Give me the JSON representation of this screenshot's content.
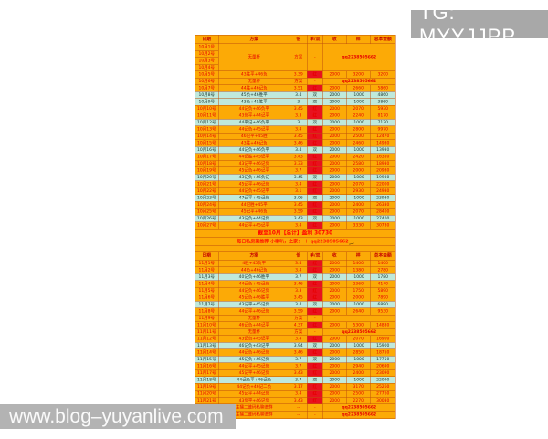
{
  "tg": {
    "label": "TG: MYYJJPP"
  },
  "watermark": {
    "text": "www.blog–yuyanlive.com"
  },
  "colors": {
    "row_win": "#fcaa06",
    "row_loss": "#bfe9dc",
    "grid": "#c1500a",
    "red_text": "#e60000",
    "badge_bg": "#e8111e",
    "badge_text": "#ffd94a",
    "tg_bg": "#a8a8a8",
    "watermark_bg": "#b3b3b3"
  },
  "table": {
    "headers": [
      "日期",
      "方案",
      "倍",
      "单/双",
      "收",
      "样",
      "总本金额"
    ],
    "rows": [
      {
        "type": "header"
      },
      {
        "type": "group4",
        "dates": [
          "10月1号",
          "10月2号",
          "10月3号",
          "10月4号"
        ],
        "plan": "无量杯",
        "odds": "方案",
        "sign": "-",
        "note": "qq2238505662"
      },
      {
        "type": "data",
        "style": "win",
        "date": "10月5号",
        "plan": "43胜平+46负",
        "odds": "3.39",
        "sign": "红",
        "stake": "2000",
        "result": "3200",
        "total": "3200"
      },
      {
        "type": "rest",
        "date": "10月6号",
        "plan": "无量杯",
        "odds": "方案",
        "sign": "-",
        "note": "qq2238505662"
      },
      {
        "type": "data",
        "style": "win",
        "date": "10月7号",
        "plan": "44胜+46记负",
        "odds": "3.51",
        "sign": "红",
        "stake": "2000",
        "result": "2660",
        "total": "5860"
      },
      {
        "type": "data",
        "style": "loss",
        "date": "10月8号",
        "plan": "45负+46胜平",
        "odds": "3.4",
        "sign": "双",
        "stake": "2000",
        "result": "-1000",
        "total": "4860"
      },
      {
        "type": "data",
        "style": "loss",
        "date": "10月9号",
        "plan": "43负+45胜平",
        "odds": "3",
        "sign": "双",
        "stake": "2000",
        "result": "-1000",
        "total": "3860"
      },
      {
        "type": "data",
        "style": "win",
        "date": "10月10号",
        "plan": "44记负+46负平",
        "odds": "3.45",
        "sign": "红",
        "stake": "2000",
        "result": "2070",
        "total": "5930"
      },
      {
        "type": "data",
        "style": "win",
        "date": "10月11号",
        "plan": "43负平+44记平",
        "odds": "3.3",
        "sign": "红",
        "stake": "2000",
        "result": "2240",
        "total": "8170"
      },
      {
        "type": "data",
        "style": "loss",
        "date": "10月12号",
        "plan": "44平记+46负平",
        "odds": "3",
        "sign": "双",
        "stake": "2000",
        "result": "-1000",
        "total": "7170"
      },
      {
        "type": "data",
        "style": "win",
        "date": "10月13号",
        "plan": "44记负+45记平",
        "odds": "3.4",
        "sign": "红",
        "stake": "2000",
        "result": "2800",
        "total": "9970"
      },
      {
        "type": "data",
        "style": "win",
        "date": "10月14号",
        "plan": "46记平+45胜",
        "odds": "3.45",
        "sign": "红",
        "stake": "2000",
        "result": "2500",
        "total": "12470"
      },
      {
        "type": "data",
        "style": "win",
        "date": "10月15号",
        "plan": "43胜+46记负",
        "odds": "3.46",
        "sign": "红",
        "stake": "2000",
        "result": "2460",
        "total": "14930"
      },
      {
        "type": "data",
        "style": "loss",
        "date": "10月16号",
        "plan": "44记负+46负平",
        "odds": "3.4",
        "sign": "双",
        "stake": "2000",
        "result": "-1000",
        "total": "13930"
      },
      {
        "type": "data",
        "style": "win",
        "date": "10月17号",
        "plan": "44记胜+45记平",
        "odds": "3.43",
        "sign": "红",
        "stake": "2000",
        "result": "2420",
        "total": "16350"
      },
      {
        "type": "data",
        "style": "win",
        "date": "10月18号",
        "plan": "43记平+46记负",
        "odds": "3.33",
        "sign": "红",
        "stake": "2000",
        "result": "2580",
        "total": "18930"
      },
      {
        "type": "data",
        "style": "win",
        "date": "10月19号",
        "plan": "45记负+46记平",
        "odds": "3.7",
        "sign": "红",
        "stake": "2000",
        "result": "2000",
        "total": "20930"
      },
      {
        "type": "data",
        "style": "loss",
        "date": "10月20号",
        "plan": "43记负+46负记",
        "odds": "3.45",
        "sign": "双",
        "stake": "2000",
        "result": "-1000",
        "total": "19930"
      },
      {
        "type": "data",
        "style": "win",
        "date": "10月21号",
        "plan": "45记平+46记负",
        "odds": "3.4",
        "sign": "红",
        "stake": "2000",
        "result": "2070",
        "total": "22000"
      },
      {
        "type": "data",
        "style": "win",
        "date": "10月22号",
        "plan": "44记负+45记平",
        "odds": "3.1",
        "sign": "红",
        "stake": "2000",
        "result": "2930",
        "total": "24930"
      },
      {
        "type": "data",
        "style": "loss",
        "date": "10月23号",
        "plan": "47记平+45记负",
        "odds": "3.06",
        "sign": "双",
        "stake": "2000",
        "result": "-1000",
        "total": "23930"
      },
      {
        "type": "data",
        "style": "win",
        "date": "10月24号",
        "plan": "44记胜+45平",
        "odds": "3.45",
        "sign": "红",
        "stake": "2000",
        "result": "2400",
        "total": "26330"
      },
      {
        "type": "data",
        "style": "win",
        "date": "10月25号",
        "plan": "45记平+46负",
        "odds": "3.59",
        "sign": "红",
        "stake": "2000",
        "result": "2070",
        "total": "28400"
      },
      {
        "type": "data",
        "style": "loss",
        "date": "10月26号",
        "plan": "43记负+44记负",
        "odds": "3.43",
        "sign": "双",
        "stake": "2000",
        "result": "-1000",
        "total": "27400"
      },
      {
        "type": "data",
        "style": "win",
        "date": "10月27号",
        "plan": "44记平+45记平",
        "odds": "3.4",
        "sign": "红",
        "stake": "2000",
        "result": "3330",
        "total": "30730"
      },
      {
        "type": "sum",
        "text": "截至10月【总计】盈利  30730"
      },
      {
        "type": "promo",
        "text": "每日私房菜推荐  小喇叭，之家： ＋ qq2238505662",
        "scribble": "﹏"
      },
      {
        "type": "spacer"
      },
      {
        "type": "header"
      },
      {
        "type": "data",
        "style": "win",
        "date": "11月1号",
        "plan": "4胜+45负平",
        "odds": "3.4",
        "sign": "红",
        "stake": "2000",
        "result": "1400",
        "total": "1400"
      },
      {
        "type": "data",
        "style": "win",
        "date": "11月2号",
        "plan": "44负+46记负",
        "odds": "3.4",
        "sign": "红",
        "stake": "2000",
        "result": "1380",
        "total": "2780"
      },
      {
        "type": "data",
        "style": "loss",
        "date": "11月3号",
        "plan": "40记负+46胜平",
        "odds": "3.7",
        "sign": "双",
        "stake": "2000",
        "result": "-1000",
        "total": "1780"
      },
      {
        "type": "data",
        "style": "win",
        "date": "11月4号",
        "plan": "44记负+45记负",
        "odds": "3.46",
        "sign": "红",
        "stake": "2000",
        "result": "2360",
        "total": "4140"
      },
      {
        "type": "data",
        "style": "win",
        "date": "11月5号",
        "plan": "44记负+46记负",
        "odds": "3.3",
        "sign": "红",
        "stake": "2000",
        "result": "1750",
        "total": "5890"
      },
      {
        "type": "data",
        "style": "win",
        "date": "11月6号",
        "plan": "45记负+46胜平",
        "odds": "3.45",
        "sign": "红",
        "stake": "2000",
        "result": "2000",
        "total": "7890"
      },
      {
        "type": "data",
        "style": "loss",
        "date": "11月7号",
        "plan": "43记平+45记负",
        "odds": "3.4",
        "sign": "双",
        "stake": "2000",
        "result": "-1000",
        "total": "6890"
      },
      {
        "type": "data",
        "style": "win",
        "date": "11月8号",
        "plan": "44记平+46记负",
        "odds": "3.59",
        "sign": "红",
        "stake": "2000",
        "result": "2640",
        "total": "9530"
      },
      {
        "type": "rest",
        "date": "11月9号",
        "plan": "无量杯",
        "odds": "方案",
        "sign": "-",
        "note": ""
      },
      {
        "type": "data",
        "style": "win",
        "date": "11月10号",
        "plan": "46记负+44记平",
        "odds": "4.37",
        "sign": "红",
        "stake": "2000",
        "result": "5300",
        "total": "14830"
      },
      {
        "type": "rest",
        "date": "11月11号",
        "plan": "无量杯",
        "odds": "方案",
        "sign": "-",
        "note": "qq2238505662"
      },
      {
        "type": "data",
        "style": "win",
        "date": "11月12号",
        "plan": "43记负+45记平",
        "odds": "3.4",
        "sign": "红",
        "stake": "2000",
        "result": "2070",
        "total": "16900"
      },
      {
        "type": "data",
        "style": "loss",
        "date": "11月13号",
        "plan": "46记负+43记平",
        "odds": "3.94",
        "sign": "双",
        "stake": "2000",
        "result": "-1000",
        "total": "15900"
      },
      {
        "type": "data",
        "style": "win",
        "date": "11月14号",
        "plan": "44记负+46记负",
        "odds": "3.46",
        "sign": "红",
        "stake": "2000",
        "result": "2850",
        "total": "18750"
      },
      {
        "type": "data",
        "style": "loss",
        "date": "11月15号",
        "plan": "45记负+46记负",
        "odds": "3.7",
        "sign": "双",
        "stake": "2000",
        "result": "-1000",
        "total": "17750"
      },
      {
        "type": "data",
        "style": "win",
        "date": "11月16号",
        "plan": "44记平+45记负",
        "odds": "3.7",
        "sign": "红",
        "stake": "2000",
        "result": "2940",
        "total": "20690"
      },
      {
        "type": "data",
        "style": "win",
        "date": "11月17号",
        "plan": "45记平+46记负",
        "odds": "3.43",
        "sign": "红",
        "stake": "2000",
        "result": "2400",
        "total": "23090"
      },
      {
        "type": "data",
        "style": "loss",
        "date": "11月18号",
        "plan": "44记负平+46记负",
        "odds": "3.7",
        "sign": "双",
        "stake": "2000",
        "result": "-1000",
        "total": "22090"
      },
      {
        "type": "data",
        "style": "win",
        "date": "11月19号",
        "plan": "44记负+46记二负",
        "odds": "3.17",
        "sign": "红",
        "stake": "2000",
        "result": "3170",
        "total": "25260"
      },
      {
        "type": "data",
        "style": "win",
        "date": "11月20号",
        "plan": "45记平+44记负",
        "odds": "3.4",
        "sign": "红",
        "stake": "2000",
        "result": "2500",
        "total": "27760"
      },
      {
        "type": "data",
        "style": "win",
        "date": "11月21号",
        "plan": "43负平+46记负",
        "odds": "3.43",
        "sign": "红",
        "stake": "2000",
        "result": "2270",
        "total": "30030"
      },
      {
        "type": "contact",
        "date": "11月22号",
        "plan": "主播二维码私聊进群",
        "odds": "--",
        "sign": "-",
        "note": "qq2238505662"
      },
      {
        "type": "contact",
        "date": "11月23号",
        "plan": "主播二维码私聊进群",
        "odds": "--",
        "sign": "-",
        "note": "qq2238505662"
      }
    ]
  }
}
